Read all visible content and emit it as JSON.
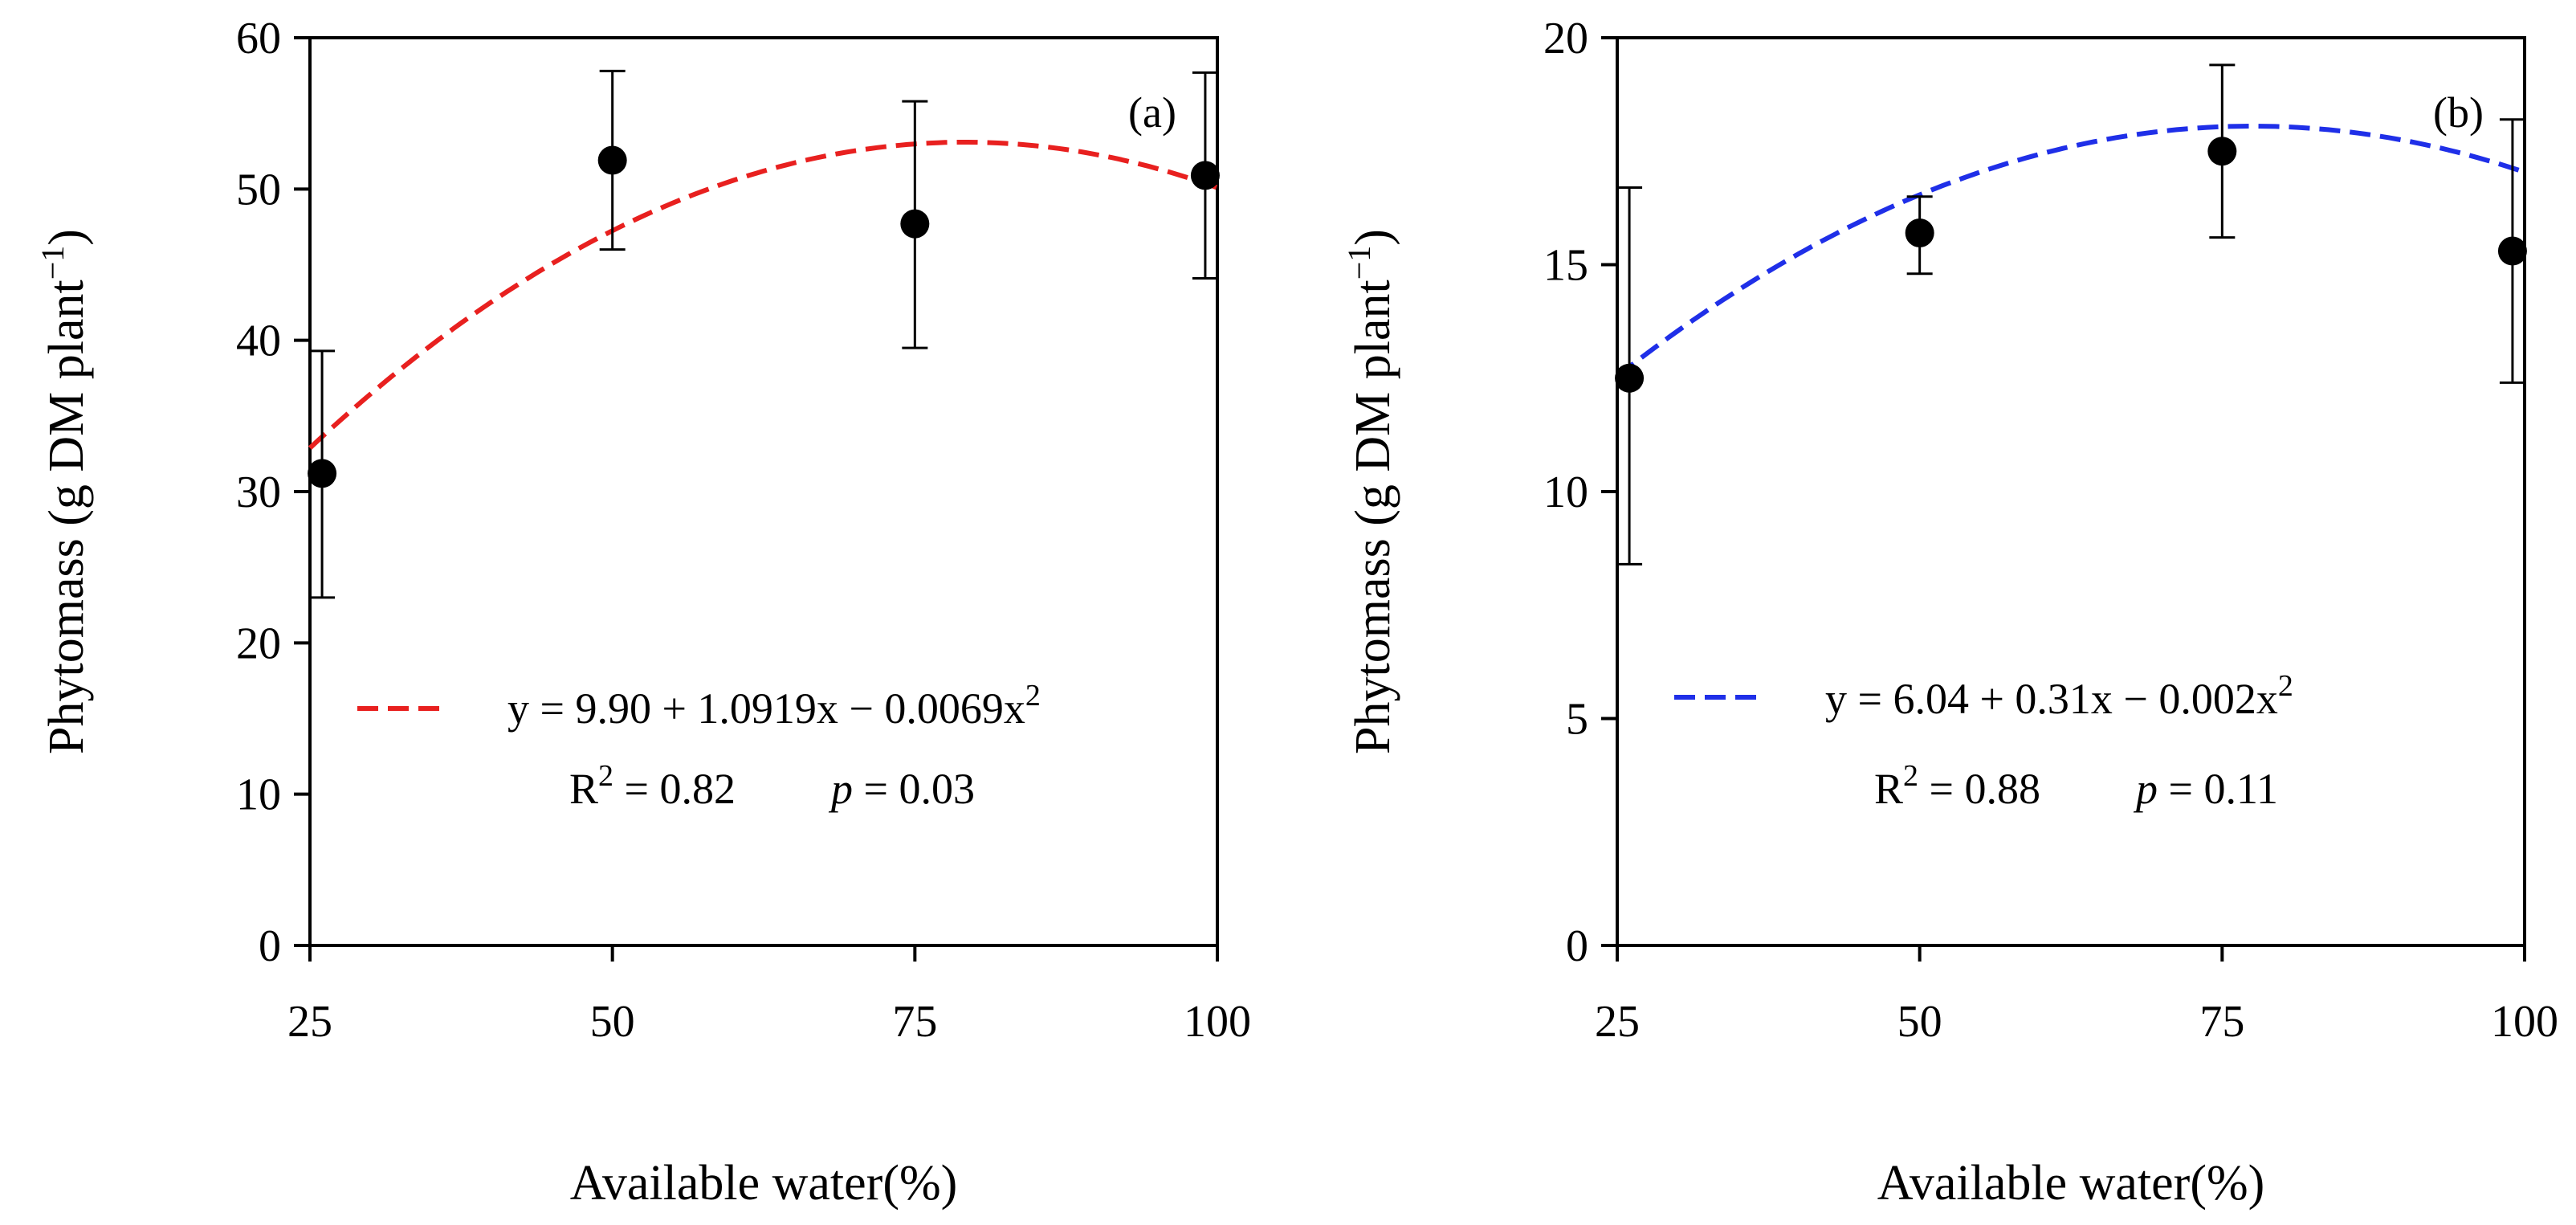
{
  "figure": {
    "panels": [
      {
        "id": "a",
        "panel_label": "(a)",
        "xlabel": "Available water(%)",
        "ylabel": "Phytomass (g DM plant",
        "ylabel_sup": "−1",
        "ylabel_close": ")",
        "line_color": "#e8201f",
        "equation": {
          "prefix": "y = 9.90 + 1.0919x − 0.0069x",
          "sup": "2",
          "r2_prefix": "R",
          "r2_sup": "2",
          "r2_value": " = 0.82",
          "p_symbol": "p",
          "p_value": " = 0.03"
        }
      },
      {
        "id": "b",
        "panel_label": "(b)",
        "xlabel": "Available water(%)",
        "ylabel": "Phytomass (g DM plant",
        "ylabel_sup": "−1",
        "ylabel_close": ")",
        "line_color": "#1f2fe8",
        "equation": {
          "prefix": "y = 6.04 + 0.31x − 0.002x",
          "sup": "2",
          "r2_prefix": "R",
          "r2_sup": "2",
          "r2_value": " = 0.88",
          "p_symbol": "p",
          "p_value": " = 0.11"
        }
      }
    ]
  },
  "chart_data": [
    {
      "type": "scatter",
      "title": "(a)",
      "xlabel": "Available water(%)",
      "ylabel": "Phytomass (g DM plant−1)",
      "xlim": [
        25,
        100
      ],
      "ylim": [
        0,
        60
      ],
      "xticks": [
        25,
        50,
        75,
        100
      ],
      "yticks": [
        0,
        10,
        20,
        30,
        40,
        50,
        60
      ],
      "points": [
        {
          "x": 26,
          "y": 31.2,
          "err_low": 23.0,
          "err_high": 39.3
        },
        {
          "x": 50,
          "y": 51.9,
          "err_low": 46.0,
          "err_high": 57.8
        },
        {
          "x": 75,
          "y": 47.7,
          "err_low": 39.5,
          "err_high": 55.8
        },
        {
          "x": 99,
          "y": 50.9,
          "err_low": 44.1,
          "err_high": 57.7
        }
      ],
      "fit": {
        "type": "quadratic",
        "a": 9.9,
        "b": 1.0919,
        "c": -0.0069,
        "x_range": [
          25,
          100
        ],
        "style": "dashed"
      },
      "grid": false
    },
    {
      "type": "scatter",
      "title": "(b)",
      "xlabel": "Available water(%)",
      "ylabel": "Phytomass (g DM plant−1)",
      "xlim": [
        25,
        100
      ],
      "ylim": [
        0,
        20
      ],
      "xticks": [
        25,
        50,
        75,
        100
      ],
      "yticks": [
        0,
        5,
        10,
        15,
        20
      ],
      "points": [
        {
          "x": 26,
          "y": 12.5,
          "err_low": 8.4,
          "err_high": 16.7
        },
        {
          "x": 50,
          "y": 15.7,
          "err_low": 14.8,
          "err_high": 16.5
        },
        {
          "x": 75,
          "y": 17.5,
          "err_low": 15.6,
          "err_high": 19.4
        },
        {
          "x": 99,
          "y": 15.3,
          "err_low": 12.4,
          "err_high": 18.2
        }
      ],
      "fit": {
        "type": "quadratic",
        "a": 6.04,
        "b": 0.31,
        "c": -0.002,
        "x_range": [
          25,
          100
        ],
        "style": "dashed"
      },
      "grid": false
    }
  ]
}
